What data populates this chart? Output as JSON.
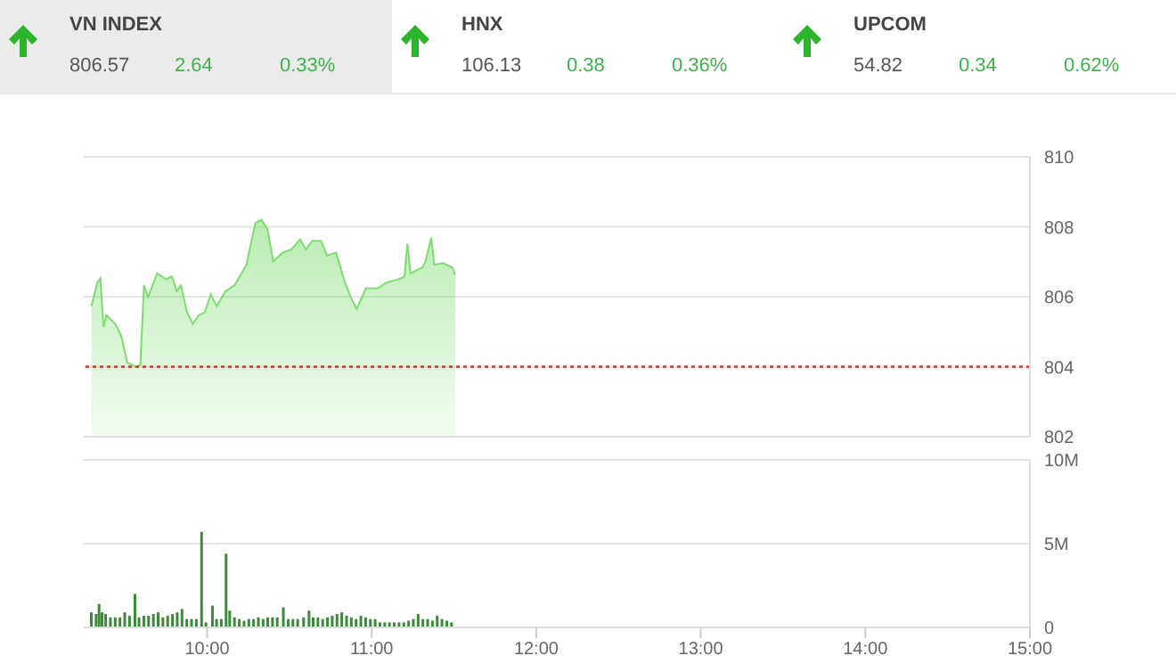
{
  "chart_data": [
    {
      "type": "other",
      "annotations": [
        "VN INDEX",
        "806.57",
        "2.64",
        "0.33%",
        "HNX",
        "106.13",
        "0.38",
        "0.36%",
        "UPCOM",
        "54.82",
        "0.34",
        "0.62%"
      ]
    },
    {
      "type": "area",
      "color": "#7ddc6f",
      "xlim": [
        9.25,
        15
      ],
      "ylim": [
        802,
        810
      ],
      "yticks": [
        802,
        804,
        806,
        808,
        810
      ],
      "grid": "y",
      "tick_labels": "y",
      "x": [
        9.297,
        9.333,
        9.351,
        9.37,
        9.388,
        9.442,
        9.478,
        9.514,
        9.569,
        9.594,
        9.616,
        9.641,
        9.696,
        9.75,
        9.786,
        9.815,
        9.841,
        9.877,
        9.913,
        9.949,
        9.986,
        10.022,
        10.058,
        10.112,
        10.167,
        10.239,
        10.293,
        10.33,
        10.366,
        10.402,
        10.457,
        10.511,
        10.565,
        10.601,
        10.638,
        10.692,
        10.728,
        10.783,
        10.837,
        10.873,
        10.909,
        10.964,
        11.036,
        11.091,
        11.163,
        11.199,
        11.217,
        11.236,
        11.308,
        11.326,
        11.362,
        11.38,
        11.435,
        11.489,
        11.507
      ],
      "values": [
        805.73,
        806.41,
        806.53,
        805.14,
        805.47,
        805.22,
        804.88,
        804.12,
        804.0,
        804.05,
        806.33,
        805.99,
        806.67,
        806.5,
        806.58,
        806.16,
        806.33,
        805.56,
        805.22,
        805.47,
        805.56,
        806.07,
        805.73,
        806.16,
        806.33,
        806.92,
        808.11,
        808.2,
        807.94,
        807.01,
        807.26,
        807.35,
        807.64,
        807.35,
        807.6,
        807.6,
        807.18,
        807.26,
        806.41,
        805.99,
        805.65,
        806.24,
        806.24,
        806.41,
        806.5,
        806.58,
        807.52,
        806.67,
        806.84,
        807.0,
        807.69,
        806.92,
        806.96,
        806.84,
        806.62
      ],
      "ref_lines": [
        {
          "axis": "y",
          "value": 804,
          "color": "#c0392b",
          "line_style": "dotted"
        }
      ]
    },
    {
      "type": "bar",
      "color": "#3a8a3a",
      "xlim": [
        9.25,
        15
      ],
      "xticks": [
        {
          "value": 10,
          "label": "10:00"
        },
        {
          "value": 11,
          "label": "11:00"
        },
        {
          "value": 12,
          "label": "12:00"
        },
        {
          "value": 13,
          "label": "13:00"
        },
        {
          "value": 14,
          "label": "14:00"
        },
        {
          "value": 15,
          "label": "15:00"
        }
      ],
      "ylim": [
        0,
        10
      ],
      "yticks": [
        0,
        {
          "value": 5,
          "label": "5M"
        },
        {
          "value": 10,
          "label": "10M"
        }
      ],
      "grid": "y",
      "x": [
        9.297,
        9.326,
        9.344,
        9.362,
        9.384,
        9.413,
        9.442,
        9.471,
        9.5,
        9.529,
        9.562,
        9.587,
        9.616,
        9.645,
        9.674,
        9.703,
        9.732,
        9.761,
        9.79,
        9.819,
        9.848,
        9.877,
        9.906,
        9.935,
        9.967,
        9.993,
        10.033,
        10.058,
        10.087,
        10.116,
        10.138,
        10.167,
        10.196,
        10.225,
        10.254,
        10.283,
        10.312,
        10.341,
        10.369,
        10.398,
        10.427,
        10.464,
        10.493,
        10.522,
        10.551,
        10.587,
        10.62,
        10.645,
        10.674,
        10.703,
        10.732,
        10.761,
        10.79,
        10.819,
        10.848,
        10.877,
        10.906,
        10.935,
        10.964,
        10.993,
        11.022,
        11.051,
        11.08,
        11.109,
        11.138,
        11.167,
        11.196,
        11.225,
        11.254,
        11.283,
        11.312,
        11.341,
        11.37,
        11.399,
        11.428,
        11.457,
        11.486
      ],
      "values": [
        0.9,
        0.8,
        1.4,
        0.9,
        0.8,
        0.6,
        0.6,
        0.6,
        0.9,
        0.7,
        2.0,
        0.6,
        0.7,
        0.7,
        0.8,
        0.9,
        0.6,
        0.7,
        0.8,
        0.9,
        1.1,
        0.5,
        0.5,
        0.5,
        5.7,
        0.3,
        1.3,
        0.5,
        0.5,
        4.4,
        1.0,
        0.6,
        0.5,
        0.4,
        0.5,
        0.5,
        0.6,
        0.5,
        0.6,
        0.6,
        0.6,
        1.2,
        0.5,
        0.5,
        0.5,
        0.6,
        1.0,
        0.6,
        0.6,
        0.5,
        0.6,
        0.7,
        0.8,
        0.9,
        0.7,
        0.6,
        0.5,
        0.7,
        0.6,
        0.5,
        0.5,
        0.3,
        0.3,
        0.3,
        0.3,
        0.3,
        0.3,
        0.4,
        0.5,
        0.8,
        0.5,
        0.5,
        0.4,
        0.7,
        0.5,
        0.4,
        0.3
      ]
    }
  ]
}
